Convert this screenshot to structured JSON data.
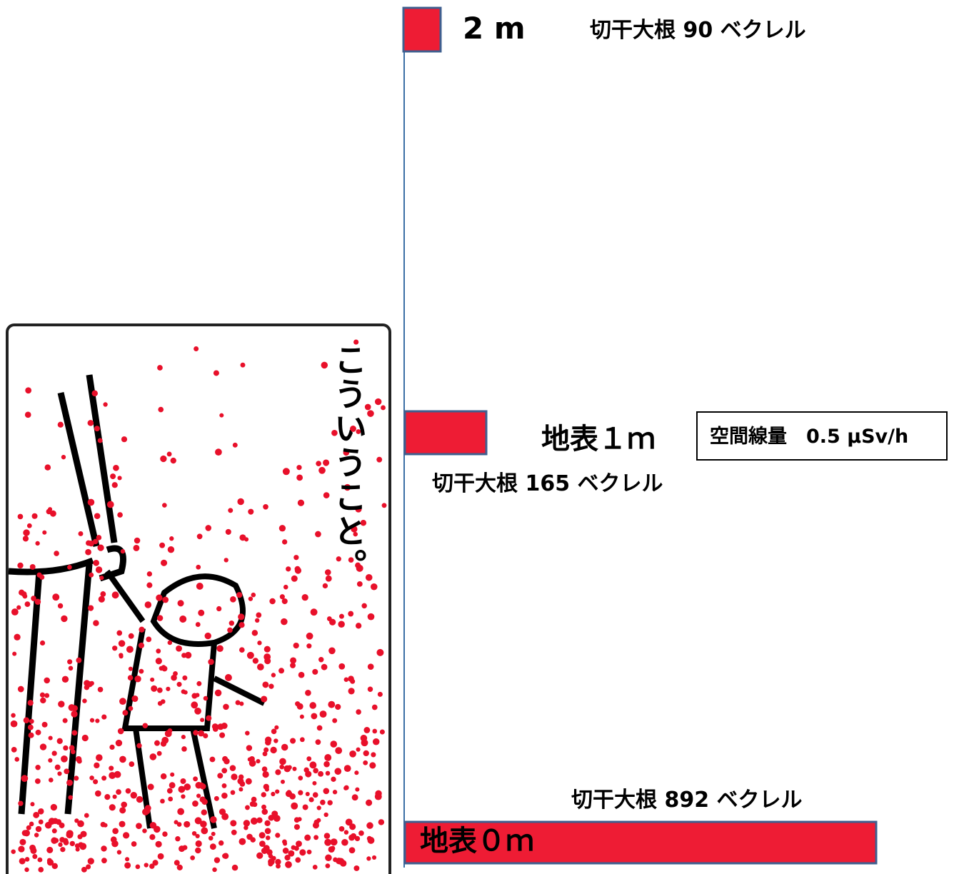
{
  "levels": [
    {
      "height": "2 m",
      "measurement": "切干大根 90 ベクレル"
    },
    {
      "height": "地表１ｍ",
      "measurement": "切干大根 165 ベクレル",
      "dose": "空間線量　0.5 μSv/h"
    },
    {
      "height": "地表０ｍ",
      "measurement": "切干大根 892 ベクレル"
    }
  ],
  "illustration": {
    "caption": "こういうこと。"
  }
}
